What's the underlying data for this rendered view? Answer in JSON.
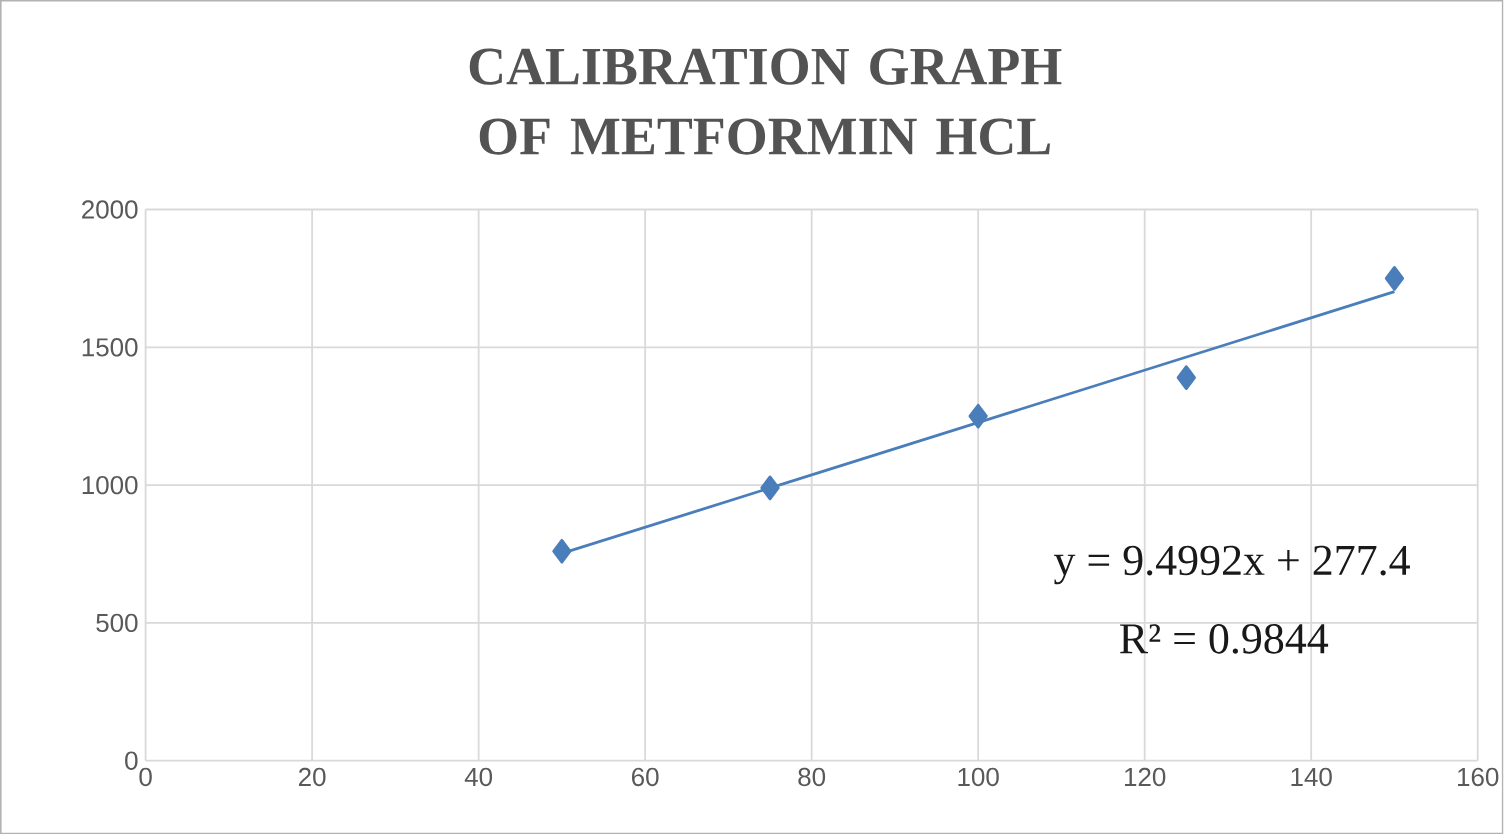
{
  "chart_data": {
    "type": "scatter",
    "title": "CALIBRATION GRAPH OF METFORMIN HCL",
    "xlim": [
      0,
      160
    ],
    "xticks": [
      0,
      20,
      40,
      60,
      80,
      100,
      120,
      140,
      160
    ],
    "ylim": [
      0,
      2000
    ],
    "yticks": [
      0,
      500,
      1000,
      1500,
      2000
    ],
    "grid": true,
    "legend": false,
    "series": [
      {
        "marker": "diamond",
        "color": "#4a7ebb",
        "x": [
          50,
          75,
          100,
          125,
          150
        ],
        "values": [
          760,
          990,
          1250,
          1390,
          1750
        ]
      },
      {
        "type": "line",
        "marker": "none",
        "color": "#4a7ebb",
        "x": [
          50,
          150
        ],
        "values": [
          752,
          1702
        ]
      }
    ],
    "annotations": [
      "y = 9.4992x + 277.4",
      "R² = 0.9844"
    ]
  }
}
